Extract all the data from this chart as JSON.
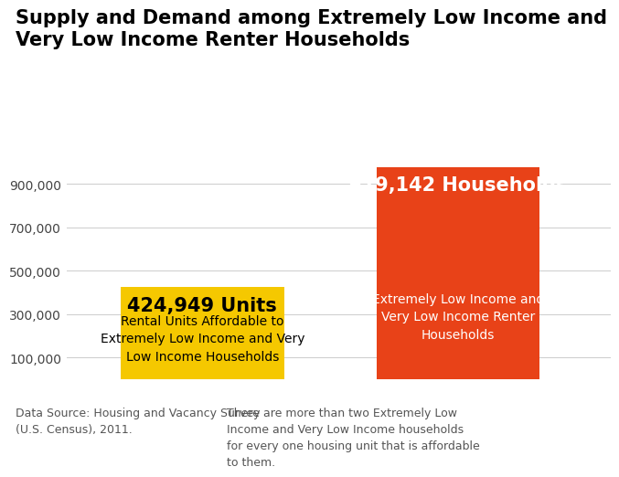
{
  "title_line1": "Supply and Demand among Extremely Low Income and",
  "title_line2": "Very Low Income Renter Households",
  "values": [
    424949,
    979142
  ],
  "bar_colors": [
    "#F5C800",
    "#E84218"
  ],
  "bar_labels": [
    "424,949 Units",
    "979,142 Households"
  ],
  "bar_sublabels": [
    "Rental Units Affordable to\nExtremely Low Income and Very\nLow Income Households",
    "Extremely Low Income and\nVery Low Income Renter\nHouseholds"
  ],
  "bar_label_colors": [
    "#000000",
    "#FFFFFF"
  ],
  "bar_sublabel_colors": [
    "#000000",
    "#FFFFFF"
  ],
  "yticks": [
    100000,
    300000,
    500000,
    700000,
    900000
  ],
  "ytick_labels": [
    "100,000",
    "300,000",
    "500,000",
    "700,000",
    "900,000"
  ],
  "ymin": 0,
  "ymax": 1020000,
  "background_color": "#FFFFFF",
  "footnote_left": "Data Source: Housing and Vacancy Survey\n(U.S. Census), 2011.",
  "footnote_right": "There are more than two Extremely Low\nIncome and Very Low Income households\nfor every one housing unit that is affordable\nto them.",
  "title_fontsize": 15,
  "label_fontsize": 15,
  "sublabel_fontsize": 10,
  "ytick_fontsize": 10,
  "footnote_fontsize": 9
}
